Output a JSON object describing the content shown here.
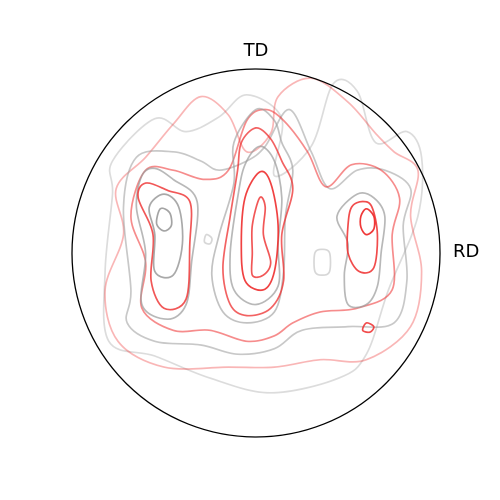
{
  "chart_data": {
    "type": "contour",
    "labels": {
      "top": "TD",
      "right": "RD"
    },
    "colors": {
      "gray": "#9a9a9a",
      "red": "#ee2d2d",
      "boundary": "#000000"
    },
    "contours": [
      {
        "id": "outer-light-gray",
        "color": "gray",
        "opacity": 0.35,
        "points": [
          [
            0.14,
            0.73
          ],
          [
            0.1,
            0.42
          ],
          [
            0.3,
            0.58
          ],
          [
            0.42,
            0.92
          ],
          [
            0.55,
            0.88
          ],
          [
            0.65,
            0.6
          ],
          [
            0.82,
            0.66
          ],
          [
            0.9,
            0.52
          ],
          [
            0.88,
            0.2
          ],
          [
            0.72,
            -0.2
          ],
          [
            0.6,
            -0.55
          ],
          [
            0.45,
            -0.68
          ],
          [
            0.08,
            -0.76
          ],
          [
            -0.25,
            -0.68
          ],
          [
            -0.55,
            -0.56
          ],
          [
            -0.8,
            -0.48
          ],
          [
            -0.82,
            -0.1
          ],
          [
            -0.78,
            0.32
          ],
          [
            -0.78,
            0.5
          ],
          [
            -0.55,
            0.73
          ],
          [
            -0.38,
            0.66
          ],
          [
            -0.2,
            0.74
          ],
          [
            -0.05,
            0.86
          ]
        ]
      },
      {
        "id": "outer-light-red",
        "color": "red",
        "opacity": 0.35,
        "points": [
          [
            -0.3,
            0.85
          ],
          [
            -0.15,
            0.75
          ],
          [
            -0.05,
            0.55
          ],
          [
            0.08,
            0.65
          ],
          [
            0.12,
            0.85
          ],
          [
            0.3,
            0.95
          ],
          [
            0.5,
            0.82
          ],
          [
            0.65,
            0.65
          ],
          [
            0.75,
            0.55
          ],
          [
            0.88,
            0.45
          ],
          [
            0.84,
            0.2
          ],
          [
            0.9,
            -0.1
          ],
          [
            0.84,
            -0.4
          ],
          [
            0.6,
            -0.58
          ],
          [
            0.35,
            -0.58
          ],
          [
            0.1,
            -0.62
          ],
          [
            -0.15,
            -0.62
          ],
          [
            -0.5,
            -0.62
          ],
          [
            -0.75,
            -0.48
          ],
          [
            -0.82,
            -0.2
          ],
          [
            -0.72,
            0.1
          ],
          [
            -0.76,
            0.35
          ],
          [
            -0.6,
            0.52
          ],
          [
            -0.45,
            0.7
          ]
        ]
      },
      {
        "id": "gray-mid-band",
        "color": "gray",
        "opacity": 0.55,
        "points": [
          [
            0.18,
            0.78
          ],
          [
            0.05,
            0.58
          ],
          [
            -0.05,
            0.5
          ],
          [
            -0.2,
            0.45
          ],
          [
            -0.3,
            0.5
          ],
          [
            -0.45,
            0.55
          ],
          [
            -0.65,
            0.52
          ],
          [
            -0.72,
            0.25
          ],
          [
            -0.68,
            -0.2
          ],
          [
            -0.7,
            -0.38
          ],
          [
            -0.55,
            -0.48
          ],
          [
            -0.3,
            -0.5
          ],
          [
            -0.1,
            -0.55
          ],
          [
            0.1,
            -0.52
          ],
          [
            0.25,
            -0.42
          ],
          [
            0.5,
            -0.4
          ],
          [
            0.75,
            -0.38
          ],
          [
            0.82,
            -0.15
          ],
          [
            0.8,
            0.15
          ],
          [
            0.84,
            0.35
          ],
          [
            0.7,
            0.45
          ],
          [
            0.55,
            0.45
          ],
          [
            0.4,
            0.35
          ],
          [
            0.3,
            0.55
          ]
        ]
      },
      {
        "id": "red-mid-band",
        "color": "red",
        "opacity": 0.55,
        "points": [
          [
            -0.05,
            0.72
          ],
          [
            -0.15,
            0.45
          ],
          [
            -0.28,
            0.4
          ],
          [
            -0.45,
            0.45
          ],
          [
            -0.6,
            0.45
          ],
          [
            -0.68,
            0.2
          ],
          [
            -0.6,
            -0.05
          ],
          [
            -0.62,
            -0.3
          ],
          [
            -0.45,
            -0.42
          ],
          [
            -0.25,
            -0.42
          ],
          [
            -0.05,
            -0.48
          ],
          [
            0.1,
            -0.45
          ],
          [
            0.2,
            -0.38
          ],
          [
            0.35,
            -0.32
          ],
          [
            0.55,
            -0.3
          ],
          [
            0.74,
            -0.2
          ],
          [
            0.74,
            0.1
          ],
          [
            0.78,
            0.3
          ],
          [
            0.68,
            0.45
          ],
          [
            0.52,
            0.48
          ],
          [
            0.38,
            0.36
          ],
          [
            0.28,
            0.55
          ],
          [
            0.15,
            0.72
          ],
          [
            0.05,
            0.78
          ]
        ]
      },
      {
        "id": "gray-left-1",
        "color": "gray",
        "opacity": 0.7,
        "points": [
          [
            -0.55,
            0.46
          ],
          [
            -0.45,
            0.4
          ],
          [
            -0.32,
            0.28
          ],
          [
            -0.35,
            -0.05
          ],
          [
            -0.38,
            -0.28
          ],
          [
            -0.48,
            -0.36
          ],
          [
            -0.62,
            -0.28
          ],
          [
            -0.6,
            0.0
          ],
          [
            -0.65,
            0.25
          ],
          [
            -0.62,
            0.42
          ]
        ]
      },
      {
        "id": "red-left-1",
        "color": "red",
        "opacity": 0.8,
        "points": [
          [
            -0.6,
            0.38
          ],
          [
            -0.48,
            0.34
          ],
          [
            -0.36,
            0.28
          ],
          [
            -0.36,
            0.05
          ],
          [
            -0.38,
            -0.25
          ],
          [
            -0.5,
            -0.3
          ],
          [
            -0.57,
            -0.15
          ],
          [
            -0.56,
            0.1
          ],
          [
            -0.64,
            0.3
          ]
        ]
      },
      {
        "id": "gray-left-2",
        "color": "gray",
        "opacity": 0.85,
        "points": [
          [
            -0.5,
            0.32
          ],
          [
            -0.42,
            0.25
          ],
          [
            -0.4,
            0.05
          ],
          [
            -0.45,
            -0.12
          ],
          [
            -0.55,
            -0.1
          ],
          [
            -0.55,
            0.1
          ],
          [
            -0.58,
            0.25
          ]
        ]
      },
      {
        "id": "gray-left-3",
        "color": "gray",
        "opacity": 0.9,
        "points": [
          [
            -0.52,
            0.24
          ],
          [
            -0.47,
            0.22
          ],
          [
            -0.46,
            0.15
          ],
          [
            -0.5,
            0.12
          ],
          [
            -0.54,
            0.16
          ]
        ]
      },
      {
        "id": "gray-center-1",
        "color": "gray",
        "opacity": 0.6,
        "points": [
          [
            0.0,
            0.78
          ],
          [
            0.1,
            0.72
          ],
          [
            0.14,
            0.6
          ],
          [
            0.2,
            0.45
          ],
          [
            0.16,
            0.2
          ],
          [
            0.15,
            -0.1
          ],
          [
            0.1,
            -0.32
          ],
          [
            -0.05,
            -0.38
          ],
          [
            -0.18,
            -0.32
          ],
          [
            -0.24,
            -0.12
          ],
          [
            -0.2,
            0.1
          ],
          [
            -0.12,
            0.38
          ],
          [
            -0.12,
            0.6
          ]
        ]
      },
      {
        "id": "red-center-1",
        "color": "red",
        "opacity": 0.75,
        "points": [
          [
            0.0,
            0.68
          ],
          [
            0.08,
            0.62
          ],
          [
            0.14,
            0.5
          ],
          [
            0.2,
            0.35
          ],
          [
            0.14,
            0.1
          ],
          [
            0.15,
            -0.15
          ],
          [
            0.08,
            -0.3
          ],
          [
            -0.05,
            -0.34
          ],
          [
            -0.14,
            -0.28
          ],
          [
            -0.18,
            -0.08
          ],
          [
            -0.14,
            0.2
          ],
          [
            -0.1,
            0.45
          ],
          [
            -0.08,
            0.6
          ]
        ]
      },
      {
        "id": "gray-center-2",
        "color": "gray",
        "opacity": 0.7,
        "points": [
          [
            0.02,
            0.58
          ],
          [
            0.1,
            0.5
          ],
          [
            0.14,
            0.3
          ],
          [
            0.12,
            0.05
          ],
          [
            0.12,
            -0.18
          ],
          [
            0.0,
            -0.28
          ],
          [
            -0.12,
            -0.2
          ],
          [
            -0.14,
            0.0
          ],
          [
            -0.1,
            0.3
          ],
          [
            -0.06,
            0.48
          ]
        ]
      },
      {
        "id": "red-center-2",
        "color": "red",
        "opacity": 0.9,
        "points": [
          [
            0.02,
            0.44
          ],
          [
            0.08,
            0.38
          ],
          [
            0.12,
            0.15
          ],
          [
            0.1,
            -0.1
          ],
          [
            0.04,
            -0.2
          ],
          [
            -0.06,
            -0.15
          ],
          [
            -0.08,
            0.05
          ],
          [
            -0.06,
            0.3
          ]
        ]
      },
      {
        "id": "red-center-3",
        "color": "red",
        "opacity": 0.8,
        "points": [
          [
            0.02,
            0.3
          ],
          [
            0.05,
            0.25
          ],
          [
            0.04,
            0.1
          ],
          [
            0.08,
            -0.05
          ],
          [
            0.04,
            -0.12
          ],
          [
            -0.02,
            -0.12
          ],
          [
            -0.02,
            0.0
          ],
          [
            -0.02,
            0.15
          ]
        ]
      },
      {
        "id": "gray-right-1",
        "color": "gray",
        "opacity": 0.7,
        "points": [
          [
            0.55,
            0.32
          ],
          [
            0.64,
            0.3
          ],
          [
            0.7,
            0.2
          ],
          [
            0.68,
            0.0
          ],
          [
            0.66,
            -0.18
          ],
          [
            0.6,
            -0.28
          ],
          [
            0.5,
            -0.28
          ],
          [
            0.48,
            -0.12
          ],
          [
            0.5,
            0.05
          ],
          [
            0.44,
            0.2
          ]
        ]
      },
      {
        "id": "red-right-1",
        "color": "red",
        "opacity": 0.85,
        "points": [
          [
            0.58,
            0.28
          ],
          [
            0.63,
            0.25
          ],
          [
            0.66,
            0.1
          ],
          [
            0.64,
            -0.08
          ],
          [
            0.56,
            -0.1
          ],
          [
            0.5,
            0.0
          ],
          [
            0.5,
            0.15
          ],
          [
            0.52,
            0.25
          ]
        ]
      },
      {
        "id": "red-right-2",
        "color": "red",
        "opacity": 0.95,
        "points": [
          [
            0.6,
            0.24
          ],
          [
            0.64,
            0.2
          ],
          [
            0.64,
            0.13
          ],
          [
            0.6,
            0.1
          ],
          [
            0.57,
            0.14
          ],
          [
            0.57,
            0.2
          ]
        ]
      },
      {
        "id": "red-right-3",
        "color": "red",
        "opacity": 0.85,
        "points": [
          [
            0.6,
            -0.38
          ],
          [
            0.64,
            -0.4
          ],
          [
            0.62,
            -0.43
          ],
          [
            0.58,
            -0.42
          ]
        ]
      },
      {
        "id": "gray-right-small",
        "color": "gray",
        "opacity": 0.4,
        "points": [
          [
            0.36,
            0.02
          ],
          [
            0.4,
            0.0
          ],
          [
            0.4,
            -0.1
          ],
          [
            0.36,
            -0.12
          ],
          [
            0.32,
            -0.1
          ],
          [
            0.32,
            0.0
          ]
        ]
      },
      {
        "id": "gray-left-small",
        "color": "gray",
        "opacity": 0.4,
        "points": [
          [
            -0.27,
            0.1
          ],
          [
            -0.24,
            0.08
          ],
          [
            -0.25,
            0.05
          ],
          [
            -0.28,
            0.06
          ]
        ]
      }
    ]
  }
}
